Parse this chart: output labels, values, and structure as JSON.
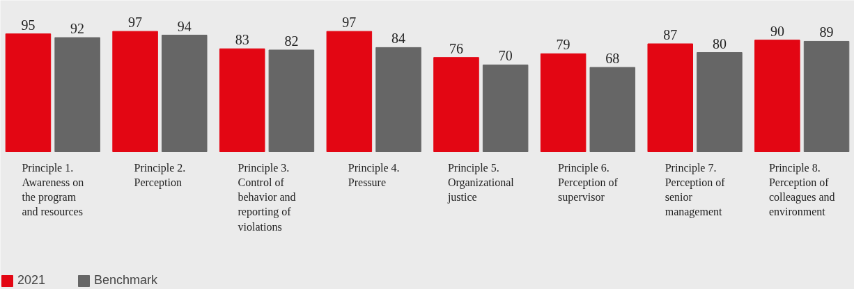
{
  "chart_data": {
    "type": "bar",
    "categories": [
      "Principle 1. Awareness on the program and resources",
      "Principle 2. Perception",
      "Principle 3. Control of behavior and reporting of violations",
      "Principle 4. Pressure",
      "Principle 5. Organizational justice",
      "Principle 6. Perception of supervisor",
      "Principle 7. Perception of senior management",
      "Principle 8. Perception of colleagues and environment"
    ],
    "series": [
      {
        "name": "2021",
        "color": "#e30613",
        "values": [
          95,
          97,
          83,
          97,
          76,
          79,
          87,
          90
        ]
      },
      {
        "name": "Benchmark",
        "color": "#666666",
        "values": [
          92,
          94,
          82,
          84,
          70,
          68,
          80,
          89
        ]
      }
    ],
    "ylim": [
      0,
      122
    ],
    "data_labels": true,
    "tick_labels": "x",
    "grid": false,
    "legend": "bottom left"
  }
}
